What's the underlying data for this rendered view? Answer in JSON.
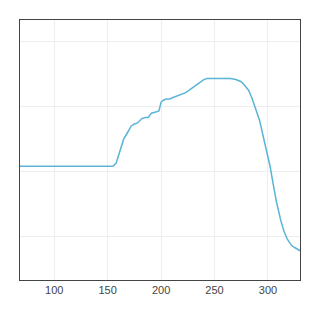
{
  "chart_data": {
    "type": "line",
    "x": [
      68,
      80,
      90,
      100,
      110,
      120,
      130,
      140,
      150,
      155,
      158,
      162,
      165,
      168,
      172,
      175,
      178,
      182,
      185,
      188,
      191,
      195,
      198,
      200,
      202,
      205,
      208,
      210,
      213,
      215,
      218,
      220,
      223,
      226,
      230,
      233,
      237,
      240,
      243,
      247,
      250,
      255,
      260,
      265,
      270,
      275,
      278,
      282,
      285,
      288,
      292,
      295,
      298,
      302,
      305,
      308,
      312,
      315,
      318,
      322,
      325,
      328,
      330
    ],
    "values": [
      24.5,
      24.5,
      24.5,
      24.5,
      24.5,
      24.5,
      24.5,
      24.5,
      24.5,
      24.5,
      24.8,
      26.0,
      27.0,
      27.5,
      28.2,
      28.4,
      28.5,
      28.9,
      29.0,
      29.0,
      29.4,
      29.5,
      29.6,
      30.4,
      30.6,
      30.7,
      30.7,
      30.8,
      30.9,
      31.0,
      31.1,
      31.2,
      31.3,
      31.5,
      31.8,
      32.0,
      32.3,
      32.5,
      32.6,
      32.6,
      32.6,
      32.6,
      32.6,
      32.6,
      32.5,
      32.3,
      32.0,
      31.5,
      30.8,
      30.0,
      28.8,
      27.5,
      26.2,
      24.5,
      22.8,
      21.2,
      19.5,
      18.5,
      17.8,
      17.2,
      17.0,
      16.8,
      16.7
    ],
    "color": "#5ab4d6",
    "xlim": [
      68,
      330
    ],
    "ylim": [
      14,
      38
    ],
    "xticks": [
      100,
      150,
      200,
      250,
      300
    ],
    "yticks": [
      18,
      24,
      30,
      36
    ],
    "grid": true,
    "tick_labels": "x"
  }
}
